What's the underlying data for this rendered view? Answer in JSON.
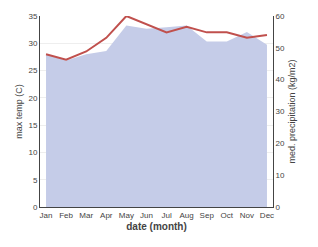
{
  "chart_data": {
    "type": "line",
    "categories": [
      "Jan",
      "Feb",
      "Mar",
      "Apr",
      "May",
      "Jun",
      "Jul",
      "Aug",
      "Sep",
      "Oct",
      "Nov",
      "Dec"
    ],
    "xlabel": "date (month)",
    "ylabel": "max temp (C)",
    "y2label": "med. precipitation (kg/m2)",
    "series": [
      {
        "type": "area",
        "axis": "y2",
        "color": "#c5cce8",
        "values": [
          48,
          46,
          48,
          49,
          57,
          56,
          56.5,
          57,
          52,
          52,
          55,
          51
        ]
      },
      {
        "type": "line",
        "color": "#c0504d",
        "values": [
          28,
          27,
          28.5,
          31,
          35,
          33.5,
          32,
          33,
          32,
          32,
          31,
          31.5
        ]
      }
    ],
    "ylim": [
      0,
      35
    ],
    "yticks": [
      0,
      5,
      10,
      15,
      20,
      25,
      30,
      35
    ],
    "y2lim": [
      0,
      60
    ],
    "y2ticks": [
      0,
      10,
      20,
      30,
      40,
      50,
      60
    ],
    "grid": true
  }
}
